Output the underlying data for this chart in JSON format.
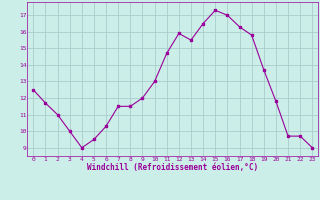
{
  "x": [
    0,
    1,
    2,
    3,
    4,
    5,
    6,
    7,
    8,
    9,
    10,
    11,
    12,
    13,
    14,
    15,
    16,
    17,
    18,
    19,
    20,
    21,
    22,
    23
  ],
  "y": [
    12.5,
    11.7,
    11.0,
    10.0,
    9.0,
    9.5,
    10.3,
    11.5,
    11.5,
    12.0,
    13.0,
    14.7,
    15.9,
    15.5,
    16.5,
    17.3,
    17.0,
    16.3,
    15.8,
    13.7,
    11.8,
    9.7,
    9.7,
    9.0
  ],
  "line_color": "#990099",
  "marker": "s",
  "marker_size": 2.0,
  "bg_color": "#cceee8",
  "grid_color": "#aacccc",
  "xlabel": "Windchill (Refroidissement éolien,°C)",
  "xlabel_color": "#990099",
  "tick_color": "#990099",
  "ylim": [
    8.5,
    17.8
  ],
  "yticks": [
    9,
    10,
    11,
    12,
    13,
    14,
    15,
    16,
    17
  ],
  "xlim": [
    -0.5,
    23.5
  ],
  "xticks": [
    0,
    1,
    2,
    3,
    4,
    5,
    6,
    7,
    8,
    9,
    10,
    11,
    12,
    13,
    14,
    15,
    16,
    17,
    18,
    19,
    20,
    21,
    22,
    23
  ]
}
